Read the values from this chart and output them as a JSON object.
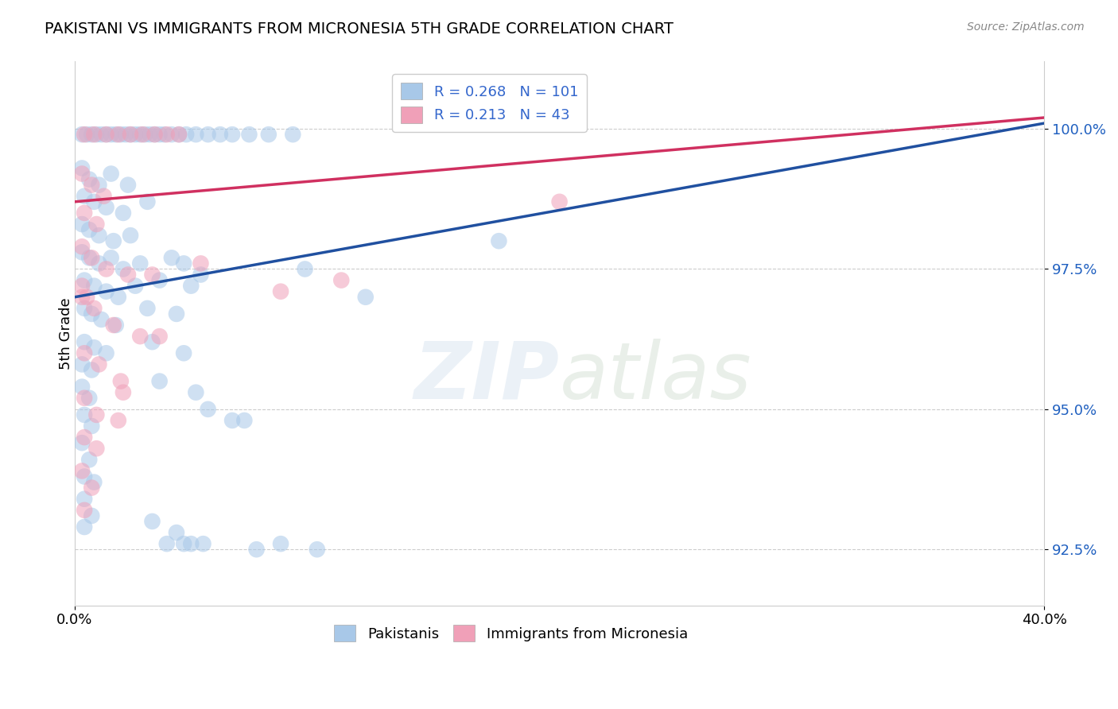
{
  "title": "PAKISTANI VS IMMIGRANTS FROM MICRONESIA 5TH GRADE CORRELATION CHART",
  "source": "Source: ZipAtlas.com",
  "ylabel": "5th Grade",
  "xlim": [
    0.0,
    40.0
  ],
  "ylim": [
    91.5,
    101.2
  ],
  "yticks": [
    92.5,
    95.0,
    97.5,
    100.0
  ],
  "blue_R": 0.268,
  "blue_N": 101,
  "pink_R": 0.213,
  "pink_N": 43,
  "blue_color": "#a8c8e8",
  "blue_line_color": "#2050a0",
  "pink_color": "#f0a0b8",
  "pink_line_color": "#d03060",
  "legend_label_blue": "Pakistanis",
  "legend_label_pink": "Immigrants from Micronesia",
  "blue_line": [
    [
      0.0,
      97.0
    ],
    [
      40.0,
      100.1
    ]
  ],
  "pink_line": [
    [
      0.0,
      98.7
    ],
    [
      40.0,
      100.2
    ]
  ],
  "blue_scatter": [
    [
      0.3,
      99.9
    ],
    [
      0.5,
      99.9
    ],
    [
      0.7,
      99.9
    ],
    [
      0.9,
      99.9
    ],
    [
      1.1,
      99.9
    ],
    [
      1.3,
      99.9
    ],
    [
      1.5,
      99.9
    ],
    [
      1.7,
      99.9
    ],
    [
      1.9,
      99.9
    ],
    [
      2.1,
      99.9
    ],
    [
      2.3,
      99.9
    ],
    [
      2.5,
      99.9
    ],
    [
      2.7,
      99.9
    ],
    [
      2.9,
      99.9
    ],
    [
      3.1,
      99.9
    ],
    [
      3.3,
      99.9
    ],
    [
      3.5,
      99.9
    ],
    [
      3.7,
      99.9
    ],
    [
      4.0,
      99.9
    ],
    [
      4.3,
      99.9
    ],
    [
      4.6,
      99.9
    ],
    [
      5.0,
      99.9
    ],
    [
      5.5,
      99.9
    ],
    [
      6.0,
      99.9
    ],
    [
      6.5,
      99.9
    ],
    [
      7.2,
      99.9
    ],
    [
      8.0,
      99.9
    ],
    [
      9.0,
      99.9
    ],
    [
      0.3,
      99.3
    ],
    [
      0.6,
      99.1
    ],
    [
      1.0,
      99.0
    ],
    [
      1.5,
      99.2
    ],
    [
      2.2,
      99.0
    ],
    [
      0.4,
      98.8
    ],
    [
      0.8,
      98.7
    ],
    [
      1.3,
      98.6
    ],
    [
      2.0,
      98.5
    ],
    [
      3.0,
      98.7
    ],
    [
      0.3,
      98.3
    ],
    [
      0.6,
      98.2
    ],
    [
      1.0,
      98.1
    ],
    [
      1.6,
      98.0
    ],
    [
      2.3,
      98.1
    ],
    [
      0.3,
      97.8
    ],
    [
      0.6,
      97.7
    ],
    [
      1.0,
      97.6
    ],
    [
      1.5,
      97.7
    ],
    [
      2.0,
      97.5
    ],
    [
      2.7,
      97.6
    ],
    [
      0.4,
      97.3
    ],
    [
      0.8,
      97.2
    ],
    [
      1.3,
      97.1
    ],
    [
      1.8,
      97.0
    ],
    [
      2.5,
      97.2
    ],
    [
      0.4,
      96.8
    ],
    [
      0.7,
      96.7
    ],
    [
      1.1,
      96.6
    ],
    [
      1.7,
      96.5
    ],
    [
      0.4,
      96.2
    ],
    [
      0.8,
      96.1
    ],
    [
      1.3,
      96.0
    ],
    [
      0.3,
      95.8
    ],
    [
      0.7,
      95.7
    ],
    [
      0.3,
      95.4
    ],
    [
      0.6,
      95.2
    ],
    [
      0.4,
      94.9
    ],
    [
      0.7,
      94.7
    ],
    [
      0.3,
      94.4
    ],
    [
      0.6,
      94.1
    ],
    [
      0.4,
      93.8
    ],
    [
      0.8,
      93.7
    ],
    [
      0.4,
      93.4
    ],
    [
      0.7,
      93.1
    ],
    [
      0.4,
      92.9
    ],
    [
      4.0,
      97.7
    ],
    [
      4.5,
      97.6
    ],
    [
      5.2,
      97.4
    ],
    [
      3.5,
      97.3
    ],
    [
      4.8,
      97.2
    ],
    [
      3.0,
      96.8
    ],
    [
      4.2,
      96.7
    ],
    [
      3.2,
      96.2
    ],
    [
      4.5,
      96.0
    ],
    [
      3.5,
      95.5
    ],
    [
      5.0,
      95.3
    ],
    [
      5.5,
      95.0
    ],
    [
      6.5,
      94.8
    ],
    [
      3.2,
      93.0
    ],
    [
      4.2,
      92.8
    ],
    [
      4.8,
      92.6
    ],
    [
      5.3,
      92.6
    ],
    [
      3.8,
      92.6
    ],
    [
      4.5,
      92.6
    ],
    [
      7.5,
      92.5
    ],
    [
      8.5,
      92.6
    ],
    [
      10.0,
      92.5
    ],
    [
      7.0,
      94.8
    ],
    [
      9.5,
      97.5
    ],
    [
      12.0,
      97.0
    ],
    [
      17.5,
      98.0
    ]
  ],
  "pink_scatter": [
    [
      0.4,
      99.9
    ],
    [
      0.8,
      99.9
    ],
    [
      1.3,
      99.9
    ],
    [
      1.8,
      99.9
    ],
    [
      2.3,
      99.9
    ],
    [
      2.8,
      99.9
    ],
    [
      3.3,
      99.9
    ],
    [
      3.8,
      99.9
    ],
    [
      4.3,
      99.9
    ],
    [
      0.3,
      99.2
    ],
    [
      0.7,
      99.0
    ],
    [
      1.2,
      98.8
    ],
    [
      0.4,
      98.5
    ],
    [
      0.9,
      98.3
    ],
    [
      0.3,
      97.9
    ],
    [
      0.7,
      97.7
    ],
    [
      1.3,
      97.5
    ],
    [
      2.2,
      97.4
    ],
    [
      0.3,
      97.0
    ],
    [
      0.8,
      96.8
    ],
    [
      1.6,
      96.5
    ],
    [
      2.7,
      96.3
    ],
    [
      0.4,
      96.0
    ],
    [
      1.0,
      95.8
    ],
    [
      1.9,
      95.5
    ],
    [
      0.4,
      95.2
    ],
    [
      0.9,
      94.9
    ],
    [
      0.4,
      94.5
    ],
    [
      0.9,
      94.3
    ],
    [
      0.3,
      93.9
    ],
    [
      0.7,
      93.6
    ],
    [
      0.4,
      93.2
    ],
    [
      3.2,
      97.4
    ],
    [
      5.2,
      97.6
    ],
    [
      0.3,
      97.2
    ],
    [
      8.5,
      97.1
    ],
    [
      11.0,
      97.3
    ],
    [
      20.0,
      98.7
    ],
    [
      3.5,
      96.3
    ],
    [
      2.0,
      95.3
    ],
    [
      1.8,
      94.8
    ],
    [
      0.5,
      97.0
    ]
  ]
}
